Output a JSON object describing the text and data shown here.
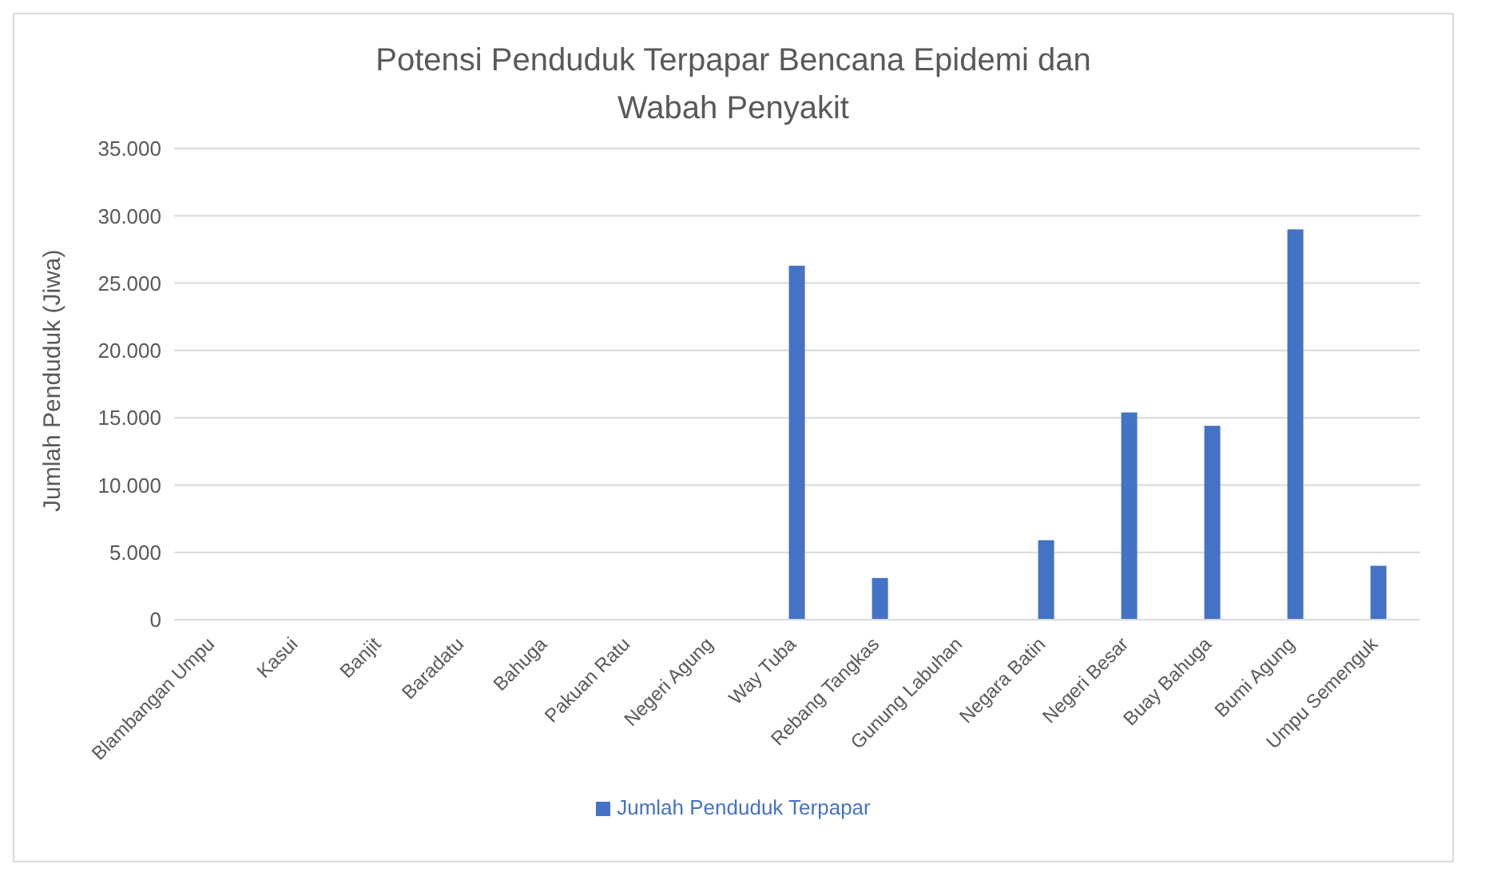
{
  "chart_data": {
    "type": "bar",
    "title": "Potensi Penduduk Terpapar Bencana Epidemi dan Wabah Penyakit",
    "ylabel": "Jumlah Penduduk (Jiwa)",
    "categories": [
      "Blambangan Umpu",
      "Kasui",
      "Banjit",
      "Baradatu",
      "Bahuga",
      "Pakuan Ratu",
      "Negeri Agung",
      "Way Tuba",
      "Rebang Tangkas",
      "Gunung Labuhan",
      "Negara Batin",
      "Negeri Besar",
      "Buay Bahuga",
      "Bumi Agung",
      "Umpu Semenguk"
    ],
    "series": [
      {
        "name": "Jumlah Penduduk Terpapar",
        "color": "#4472c4",
        "values": [
          0,
          0,
          0,
          0,
          0,
          0,
          0,
          26300,
          3100,
          0,
          5900,
          15400,
          14400,
          29000,
          4000
        ]
      }
    ],
    "ylim": [
      0,
      35000
    ],
    "yticks": [
      {
        "value": 0,
        "label": "0"
      },
      {
        "value": 5000,
        "label": "5.000"
      },
      {
        "value": 10000,
        "label": "10.000"
      },
      {
        "value": 15000,
        "label": "15.000"
      },
      {
        "value": 20000,
        "label": "20.000"
      },
      {
        "value": 25000,
        "label": "25.000"
      },
      {
        "value": 30000,
        "label": "30.000"
      },
      {
        "value": 35000,
        "label": "35.000"
      }
    ],
    "grid": "y",
    "legend": "bottom"
  }
}
